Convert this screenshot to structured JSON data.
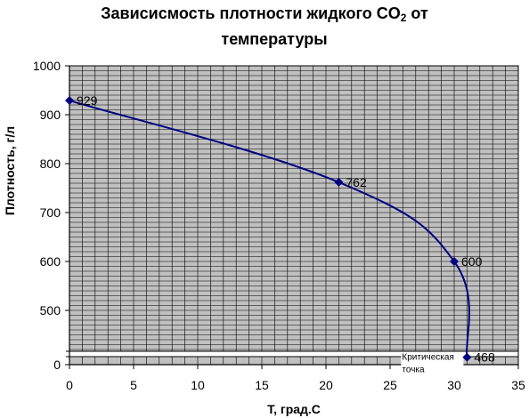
{
  "chart_data": {
    "type": "line",
    "title_line1": "Зависисмость  плотности жидкого CO",
    "title_subscript": "2",
    "title_line1_suffix": " от",
    "title_line2": "температуры",
    "xlabel": "T, град.С",
    "ylabel": "Плотность, г/л",
    "xlim": [
      0,
      35
    ],
    "ylim": [
      0,
      1000
    ],
    "x_ticks": [
      0,
      5,
      10,
      15,
      20,
      25,
      30,
      35
    ],
    "y_ticks": [
      0,
      500,
      600,
      700,
      800,
      900,
      1000
    ],
    "grid": true,
    "y_axis_break": true,
    "series": [
      {
        "x": [
          0,
          21,
          30,
          31
        ],
        "y": [
          929,
          762,
          600,
          468
        ],
        "labels": [
          "929",
          "762",
          "600",
          "468"
        ],
        "color": "#000080"
      }
    ],
    "annotation": {
      "line1": "Критическая",
      "line2": "точка"
    },
    "colors": {
      "plot_background": "#c0c0c0",
      "grid": "#000000",
      "line": "#000080",
      "marker": "#000080"
    }
  }
}
